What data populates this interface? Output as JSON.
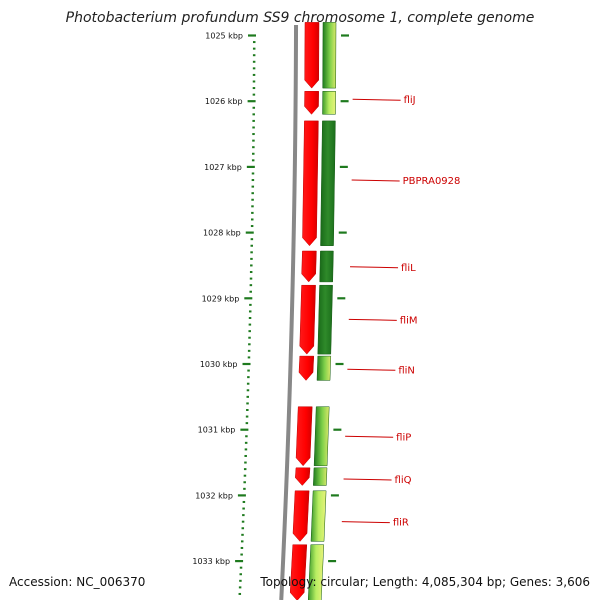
{
  "title": "Photobacterium profundum SS9 chromosome 1, complete genome",
  "footer": {
    "accession": "Accession: NC_006370",
    "summary": "Topology: circular; Length: 4,085,304 bp; Genes: 3,606"
  },
  "colors": {
    "forward_strand": "#ff0000",
    "reverse_strand": "#1e7a1e",
    "reverse_light": "#9ae05a",
    "backbone": "#888888",
    "ticks": "#1e7a1e",
    "gene_label": "#cc0000"
  },
  "ticks": [
    {
      "kbp": 1025,
      "label": "1025 kbp"
    },
    {
      "kbp": 1026,
      "label": "1026 kbp"
    },
    {
      "kbp": 1027,
      "label": "1027 kbp"
    },
    {
      "kbp": 1028,
      "label": "1028 kbp"
    },
    {
      "kbp": 1029,
      "label": "1029 kbp"
    },
    {
      "kbp": 1030,
      "label": "1030 kbp"
    },
    {
      "kbp": 1031,
      "label": "1031 kbp"
    },
    {
      "kbp": 1032,
      "label": "1032 kbp"
    },
    {
      "kbp": 1033,
      "label": "1033 kbp"
    }
  ],
  "genes": [
    {
      "name": "fliJ",
      "kbp": 1025.97
    },
    {
      "name": "PBPRA0928",
      "kbp": 1027.2
    },
    {
      "name": "fliL",
      "kbp": 1028.52
    },
    {
      "name": "fliM",
      "kbp": 1029.32
    },
    {
      "name": "fliN",
      "kbp": 1030.08
    },
    {
      "name": "fliP",
      "kbp": 1031.1
    },
    {
      "name": "fliQ",
      "kbp": 1031.75
    },
    {
      "name": "fliR",
      "kbp": 1032.4
    }
  ],
  "forward_features": [
    {
      "start": 1024.8,
      "end": 1025.8
    },
    {
      "start": 1025.85,
      "end": 1026.2
    },
    {
      "start": 1026.3,
      "end": 1028.2
    },
    {
      "start": 1028.28,
      "end": 1028.75
    },
    {
      "start": 1028.8,
      "end": 1029.85
    },
    {
      "start": 1029.88,
      "end": 1030.25
    },
    {
      "start": 1030.65,
      "end": 1031.55
    },
    {
      "start": 1031.58,
      "end": 1031.85
    },
    {
      "start": 1031.93,
      "end": 1032.7
    },
    {
      "start": 1032.75,
      "end": 1033.6
    }
  ],
  "reverse_features": [
    {
      "start": 1024.8,
      "end": 1025.8,
      "tone": "mixed"
    },
    {
      "start": 1025.85,
      "end": 1026.2,
      "tone": "light"
    },
    {
      "start": 1026.3,
      "end": 1028.2,
      "tone": "dark"
    },
    {
      "start": 1028.28,
      "end": 1028.75,
      "tone": "dark"
    },
    {
      "start": 1028.8,
      "end": 1029.85,
      "tone": "dark"
    },
    {
      "start": 1029.88,
      "end": 1030.25,
      "tone": "mixed"
    },
    {
      "start": 1030.65,
      "end": 1031.55,
      "tone": "mixed"
    },
    {
      "start": 1031.58,
      "end": 1031.85,
      "tone": "mixed"
    },
    {
      "start": 1031.93,
      "end": 1032.7,
      "tone": "light"
    },
    {
      "start": 1032.75,
      "end": 1033.6,
      "tone": "light"
    }
  ]
}
